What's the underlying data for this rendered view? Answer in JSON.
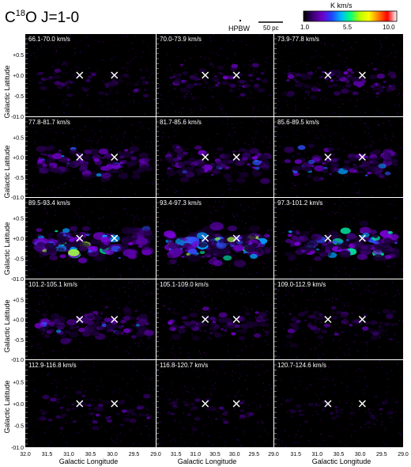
{
  "figure": {
    "title_prefix": "C",
    "title_sup": "18",
    "title_rest": "O J=1-0",
    "hpbw_label": "HPBW",
    "scalebar_label": "50 pc",
    "colorbar": {
      "unit": "K km/s",
      "ticks": [
        "1.0",
        "5.5",
        "10.0"
      ],
      "colors": [
        "#000000",
        "#3a0070",
        "#6e00c8",
        "#2040ff",
        "#00b4ff",
        "#00ff80",
        "#b4ff00",
        "#ffff00",
        "#ff8000",
        "#ff0000",
        "#ffffff"
      ]
    }
  },
  "chart_data": {
    "type": "heatmap",
    "description_of_layout": "6 rows x 3 columns channel maps",
    "xlabel": "Galactic Longitude",
    "ylabel": "Galactic Latitude",
    "x_ticks": [
      "32.0",
      "31.5",
      "31.0",
      "30.5",
      "30.0",
      "29.5",
      "29.0"
    ],
    "x_ticks_col2": [
      "31.5",
      "31.0",
      "30.5",
      "30.0",
      "29.5",
      "29.0"
    ],
    "x_ticks_col3": [
      "31.5",
      "31.0",
      "30.5",
      "30.0",
      "29.5",
      "29.0"
    ],
    "y_ticks": [
      "+00.5",
      "+00.0",
      "-00.5",
      "-01.0"
    ],
    "y_ticks_display": [
      "+0.5",
      "+0.0",
      "-0.5",
      "-01.0"
    ],
    "xlim": [
      32.0,
      29.0
    ],
    "ylim": [
      -1.0,
      1.0
    ],
    "markers": [
      {
        "l": 30.75,
        "b": 0.0
      },
      {
        "l": 29.95,
        "b": 0.0
      }
    ],
    "velocity_ranges": [
      "66.1-70.0 km/s",
      "70.0-73.9 km/s",
      "73.9-77.8 km/s",
      "77.8-81.7 km/s",
      "81.7-85.6 km/s",
      "85.6-89.5 km/s",
      "89.5-93.4 km/s",
      "93.4-97.3 km/s",
      "97.3-101.2 km/s",
      "101.2-105.1 km/s",
      "105.1-109.0 km/s",
      "109.0-112.9 km/s",
      "112.9-116.8 km/s",
      "116.8-120.7 km/s",
      "120.7-124.6 km/s"
    ],
    "panel_intensity": [
      0.15,
      0.25,
      0.35,
      0.6,
      0.55,
      0.55,
      0.9,
      1.0,
      0.8,
      0.6,
      0.4,
      0.3,
      0.2,
      0.08,
      0.04
    ]
  }
}
